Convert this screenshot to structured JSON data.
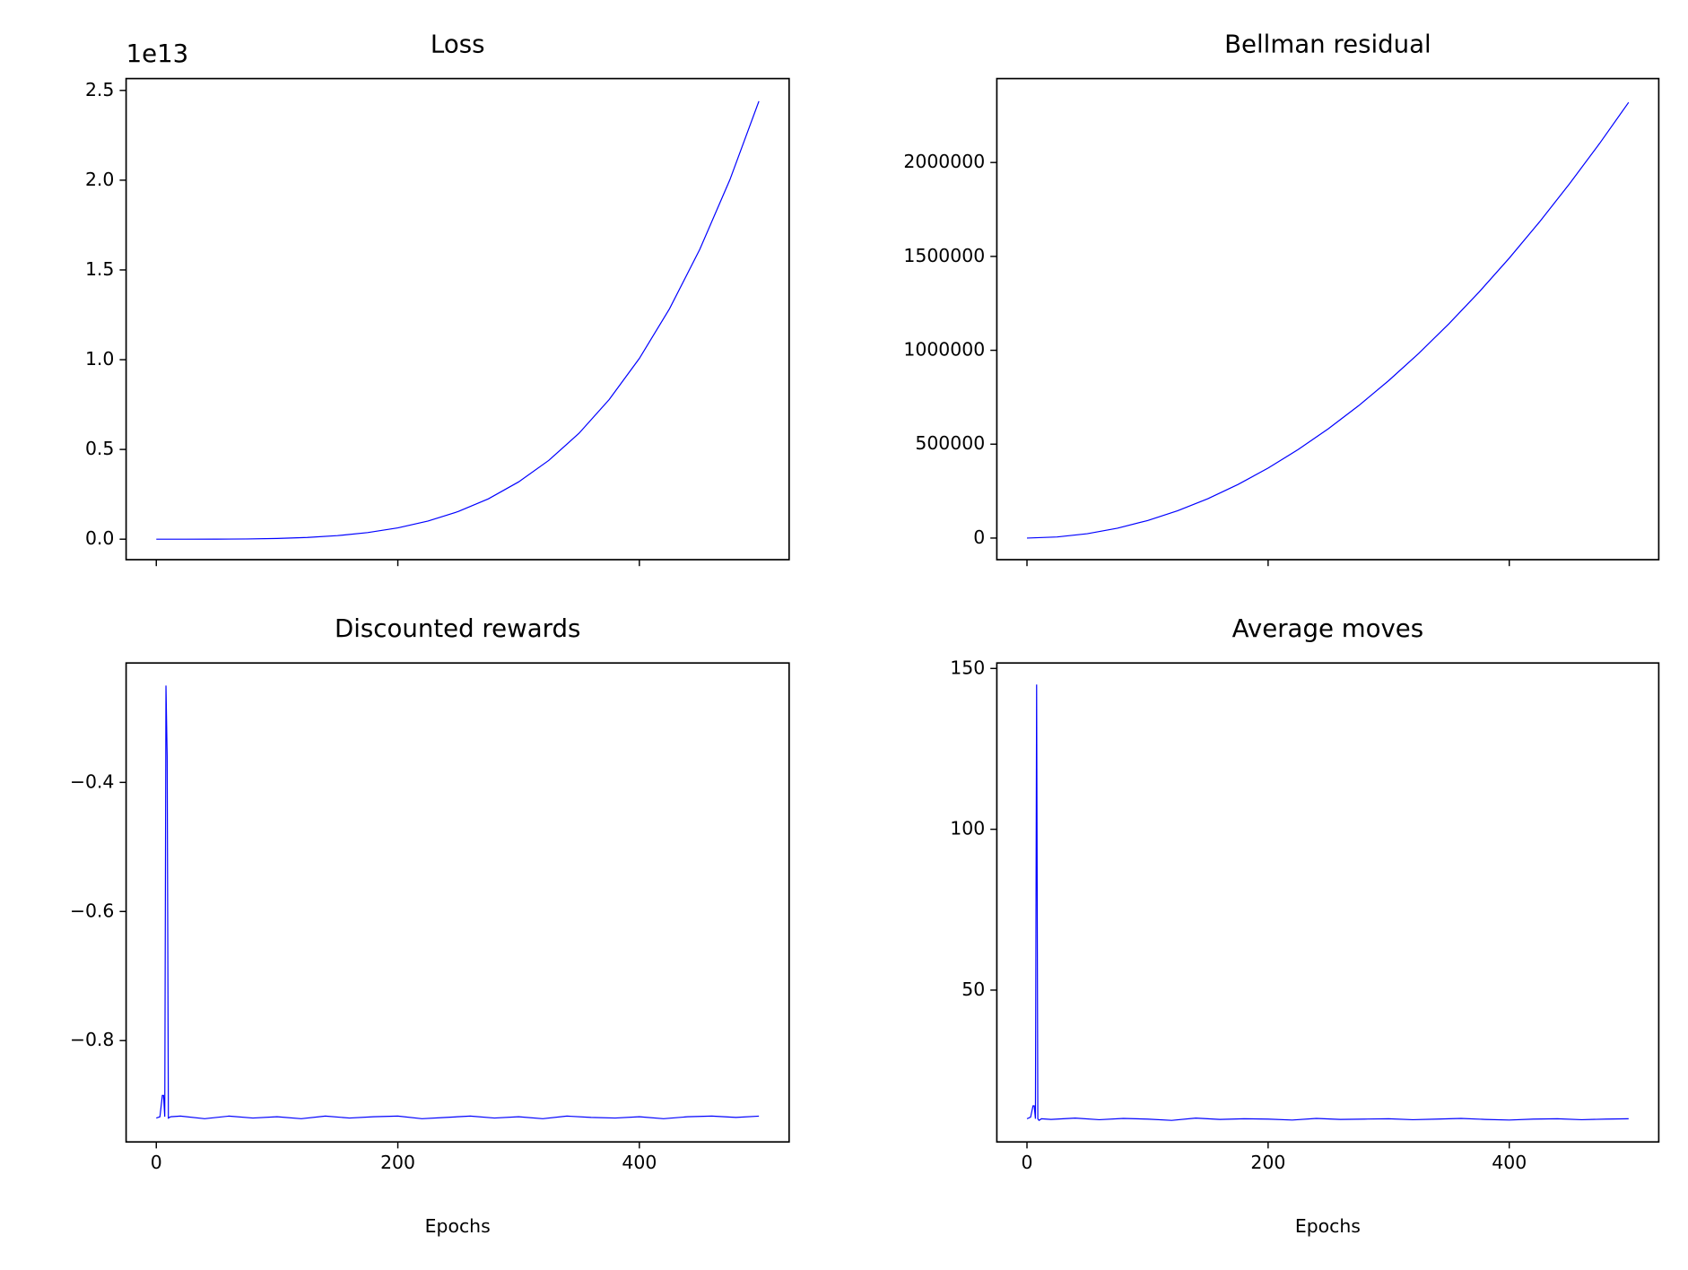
{
  "chart_data": [
    {
      "type": "line",
      "title": "Loss",
      "offset_text": "1e13",
      "color": "#0000ff",
      "x": [
        0,
        25,
        50,
        75,
        100,
        125,
        150,
        175,
        200,
        225,
        250,
        275,
        300,
        325,
        350,
        375,
        400,
        425,
        450,
        475,
        499
      ],
      "values": [
        0,
        0,
        0.0002,
        0.0012,
        0.0039,
        0.0096,
        0.0199,
        0.0369,
        0.063,
        0.101,
        0.154,
        0.225,
        0.319,
        0.439,
        0.59,
        0.778,
        1.007,
        1.284,
        1.614,
        2.003,
        2.44
      ],
      "xlim": [
        -25,
        524
      ],
      "xticks": [
        0,
        200,
        400
      ],
      "show_xtick_labels": false,
      "ylim": [
        -0.114,
        2.566
      ],
      "yticks": [
        {
          "value": 0,
          "label": "0.0"
        },
        0.5,
        {
          "value": 1,
          "label": "1.0"
        },
        1.5,
        {
          "value": 2,
          "label": "2.0"
        },
        2.5
      ]
    },
    {
      "type": "line",
      "title": "Bellman residual",
      "color": "#0000ff",
      "x": [
        0,
        25,
        50,
        75,
        100,
        125,
        150,
        175,
        200,
        225,
        250,
        275,
        300,
        325,
        350,
        375,
        400,
        425,
        450,
        475,
        499
      ],
      "values": [
        0,
        5800,
        23300,
        52400,
        93200,
        145600,
        209600,
        285400,
        372700,
        471700,
        582300,
        704600,
        838500,
        984100,
        1141400,
        1310300,
        1490800,
        1683000,
        1886700,
        2102200,
        2320000
      ],
      "xlim": [
        -25,
        524
      ],
      "xticks": [
        0,
        200,
        400
      ],
      "show_xtick_labels": false,
      "ylim": [
        -115000,
        2447000
      ],
      "yticks": [
        0,
        500000,
        1000000,
        1500000,
        2000000
      ]
    },
    {
      "type": "line",
      "title": "Discounted rewards",
      "xlabel": "Epochs",
      "color": "#0000ff",
      "x": [
        0,
        3,
        5,
        6,
        7,
        8,
        9,
        10,
        12,
        20,
        40,
        60,
        80,
        100,
        120,
        140,
        160,
        180,
        200,
        220,
        240,
        260,
        280,
        300,
        320,
        340,
        360,
        380,
        400,
        420,
        440,
        460,
        480,
        499
      ],
      "values": [
        -0.92,
        -0.918,
        -0.885,
        -0.885,
        -0.918,
        -0.25,
        -0.36,
        -0.92,
        -0.918,
        -0.917,
        -0.921,
        -0.917,
        -0.92,
        -0.918,
        -0.921,
        -0.917,
        -0.92,
        -0.918,
        -0.917,
        -0.921,
        -0.919,
        -0.917,
        -0.92,
        -0.918,
        -0.921,
        -0.917,
        -0.919,
        -0.92,
        -0.918,
        -0.921,
        -0.918,
        -0.917,
        -0.919,
        -0.917
      ],
      "xlim": [
        -25,
        524
      ],
      "xticks": [
        0,
        200,
        400
      ],
      "show_xtick_labels": true,
      "ylim": [
        -0.957,
        -0.215
      ],
      "yticks": [
        {
          "value": -0.8,
          "label": "−0.8"
        },
        {
          "value": -0.6,
          "label": "−0.6"
        },
        {
          "value": -0.4,
          "label": "−0.4"
        }
      ]
    },
    {
      "type": "line",
      "title": "Average moves",
      "xlabel": "Epochs",
      "color": "#0000ff",
      "x": [
        0,
        3,
        5,
        6,
        7,
        8,
        9,
        10,
        12,
        20,
        40,
        60,
        80,
        100,
        120,
        140,
        160,
        180,
        200,
        220,
        240,
        260,
        280,
        300,
        320,
        340,
        360,
        380,
        400,
        420,
        440,
        460,
        480,
        499
      ],
      "values": [
        10,
        10.5,
        14,
        14,
        10,
        145,
        10,
        9.5,
        10,
        9.8,
        10.2,
        9.7,
        10.1,
        9.9,
        9.5,
        10.2,
        9.8,
        10,
        9.9,
        9.6,
        10.1,
        9.8,
        9.9,
        10,
        9.7,
        9.9,
        10.1,
        9.8,
        9.6,
        9.9,
        10,
        9.7,
        9.9,
        10
      ],
      "xlim": [
        -25,
        524
      ],
      "xticks": [
        0,
        200,
        400
      ],
      "show_xtick_labels": true,
      "ylim": [
        2.8,
        151.7
      ],
      "yticks": [
        50,
        100,
        150
      ]
    }
  ]
}
